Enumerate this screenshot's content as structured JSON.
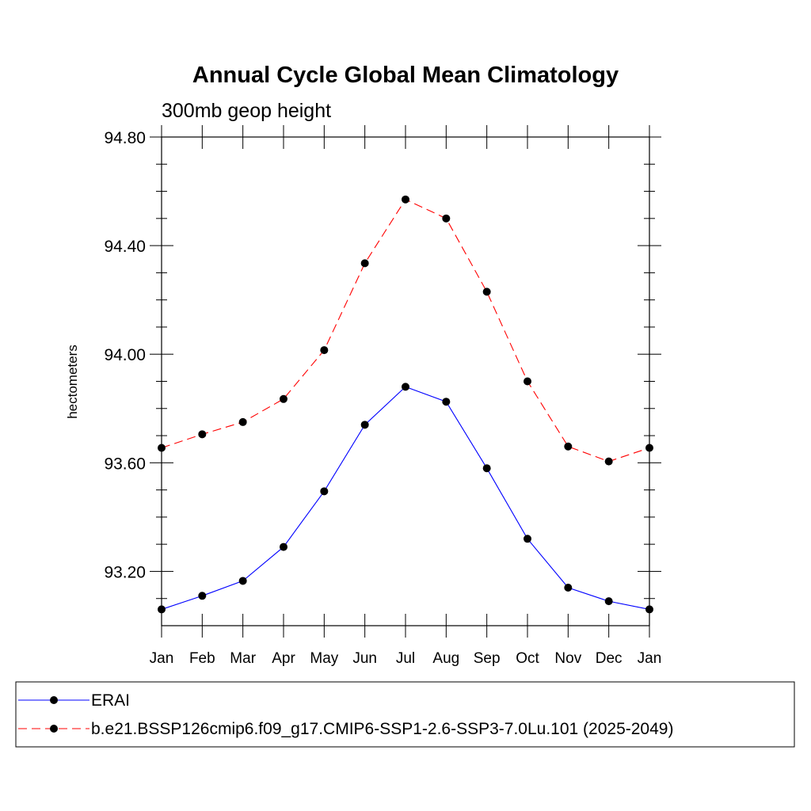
{
  "chart_data": {
    "type": "line",
    "title": "Annual Cycle Global Mean Climatology",
    "subtitle": "300mb geop height",
    "ylabel": "hectometers",
    "xlabel": "",
    "categories": [
      "Jan",
      "Feb",
      "Mar",
      "Apr",
      "May",
      "Jun",
      "Jul",
      "Aug",
      "Sep",
      "Oct",
      "Nov",
      "Dec",
      "Jan"
    ],
    "ylim": [
      93.0,
      94.8
    ],
    "yticks": [
      "93.20",
      "93.60",
      "94.00",
      "94.40",
      "94.80"
    ],
    "series": [
      {
        "name": "ERAI",
        "color": "#0000ff",
        "dash": "solid",
        "values": [
          93.06,
          93.11,
          93.165,
          93.29,
          93.495,
          93.74,
          93.88,
          93.825,
          93.58,
          93.32,
          93.14,
          93.09,
          93.06
        ]
      },
      {
        "name": "b.e21.BSSP126cmip6.f09_g17.CMIP6-SSP1-2.6-SSP3-7.0Lu.101 (2025-2049)",
        "color": "#ff0000",
        "dash": "dashed",
        "values": [
          93.655,
          93.705,
          93.75,
          93.835,
          94.015,
          94.335,
          94.57,
          94.5,
          94.23,
          93.9,
          93.66,
          93.605,
          93.655
        ]
      }
    ],
    "grid": false,
    "legend_position": "bottom"
  }
}
